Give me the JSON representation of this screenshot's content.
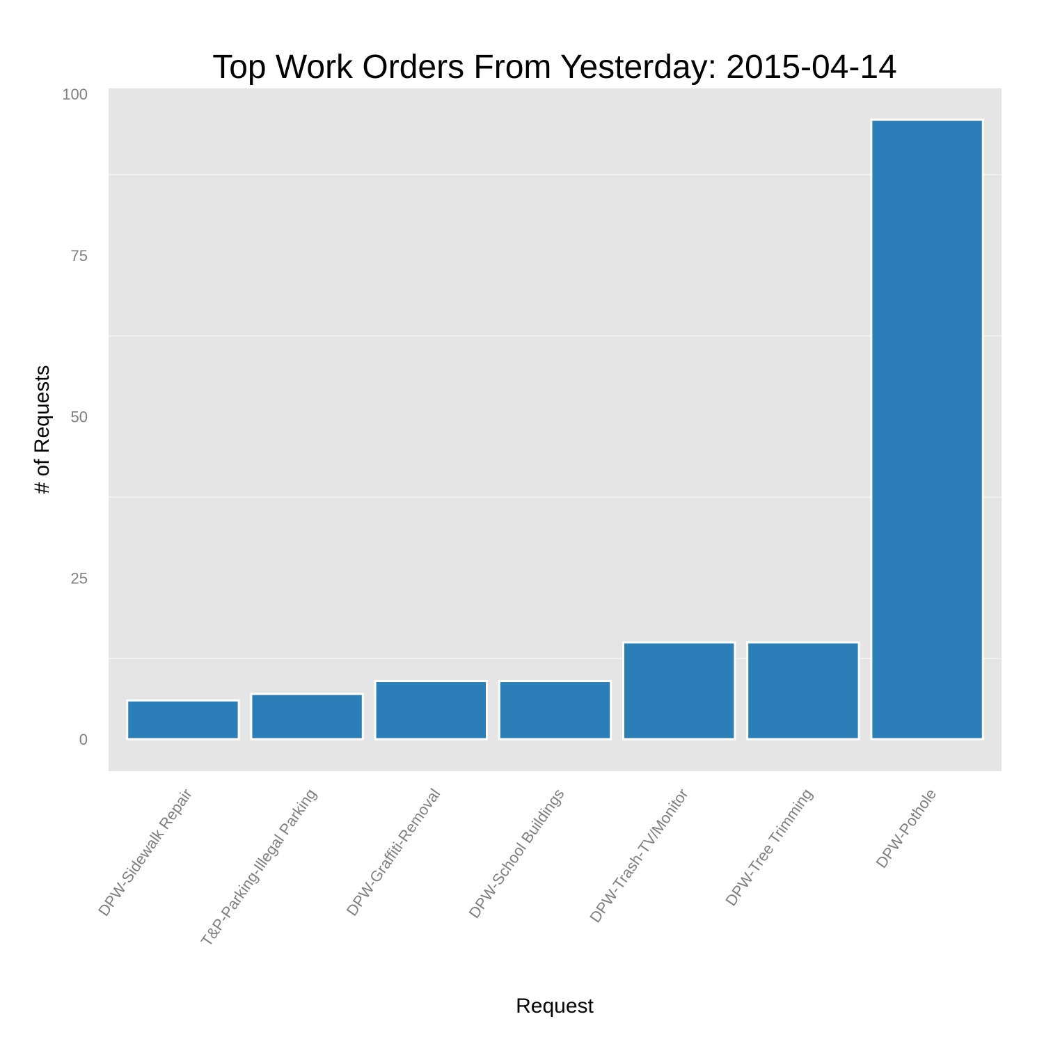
{
  "chart_data": {
    "type": "bar",
    "title": "Top Work Orders From Yesterday: 2015-04-14",
    "xlabel": "Request",
    "ylabel": "# of Requests",
    "categories": [
      "DPW-Sidewalk Repair",
      "T&P-Parking-Illegal Parking",
      "DPW-Graffiti-Removal",
      "DPW-School Buildings",
      "DPW-Trash-TV/Monitor",
      "DPW-Tree Trimming",
      "DPW-Pothole"
    ],
    "values": [
      6,
      7,
      9,
      9,
      15,
      15,
      96
    ],
    "ylim": [
      -5,
      100
    ],
    "yticks": [
      "0",
      "25",
      "50",
      "75",
      "100"
    ],
    "bar_color": "#2b7fb8",
    "panel_color": "#e5e5e5",
    "grid": true,
    "legend": "none"
  }
}
